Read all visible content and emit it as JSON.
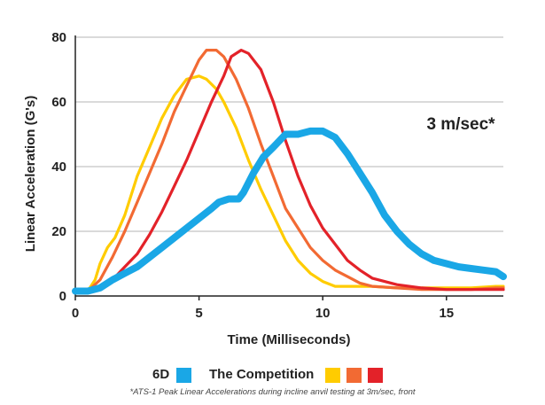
{
  "chart_data": {
    "type": "line",
    "xlabel": "Time (Milliseconds)",
    "ylabel": "Linear Acceleration (G's)",
    "xlim": [
      0,
      17.3
    ],
    "ylim": [
      0,
      80
    ],
    "xticks": [
      0,
      5,
      10,
      15
    ],
    "yticks": [
      0,
      20,
      40,
      60,
      80
    ],
    "grid": "horizontal",
    "annotation": "3 m/sec*",
    "series": [
      {
        "color": "#1aa7e6",
        "x": [
          0,
          0.5,
          1,
          1.5,
          2,
          2.5,
          3,
          3.5,
          4,
          4.5,
          5,
          5.5,
          5.8,
          6.2,
          6.6,
          6.8,
          7.2,
          7.6,
          8,
          8.5,
          9,
          9.5,
          10,
          10.5,
          11,
          11.5,
          12,
          12.5,
          13,
          13.5,
          14,
          14.5,
          15,
          15.5,
          16,
          16.5,
          17,
          17.3
        ],
        "values": [
          1.5,
          1.5,
          2.5,
          5,
          7,
          9,
          12,
          15,
          18,
          21,
          24,
          27,
          29,
          30,
          30,
          32,
          38,
          43,
          46,
          50,
          50,
          51,
          51,
          49,
          44,
          38,
          32,
          25,
          20,
          16,
          13,
          11,
          10,
          9,
          8.5,
          8,
          7.5,
          6
        ]
      },
      {
        "color": "#ffcc00",
        "x": [
          0,
          0.5,
          0.8,
          1,
          1.3,
          1.6,
          2,
          2.5,
          3,
          3.5,
          4,
          4.5,
          5,
          5.3,
          5.7,
          6,
          6.5,
          7,
          7.5,
          8,
          8.5,
          9,
          9.5,
          10,
          10.5,
          11,
          11.5,
          12,
          13,
          14,
          15,
          16,
          17,
          17.3
        ],
        "values": [
          1,
          1.5,
          5,
          10,
          15,
          18,
          25,
          37,
          46,
          55,
          62,
          67,
          68,
          67,
          64,
          60,
          52,
          42,
          33,
          25,
          17,
          11,
          7,
          4.5,
          3,
          3,
          3,
          3,
          2.5,
          2.5,
          2.5,
          2.5,
          3,
          3
        ]
      },
      {
        "color": "#f26a33",
        "x": [
          0,
          0.5,
          1,
          1.5,
          2,
          2.5,
          3,
          3.5,
          4,
          4.5,
          5,
          5.3,
          5.7,
          6,
          6.5,
          7,
          7.5,
          8,
          8.5,
          9,
          9.5,
          10,
          10.5,
          11,
          11.5,
          12,
          13,
          14,
          15,
          16,
          17,
          17.3
        ],
        "values": [
          1,
          1.5,
          5,
          12,
          20,
          29,
          38,
          47,
          57,
          65,
          73,
          76,
          76,
          74,
          67,
          58,
          47,
          37,
          27,
          21,
          15,
          11,
          8,
          6,
          4,
          3,
          2.5,
          2,
          2,
          2,
          2.5,
          2.5
        ]
      },
      {
        "color": "#e32229",
        "x": [
          0,
          0.5,
          1,
          1.5,
          2,
          2.5,
          3,
          3.5,
          4,
          4.5,
          5,
          5.5,
          6,
          6.3,
          6.7,
          7,
          7.5,
          8,
          8.5,
          9,
          9.5,
          10,
          10.5,
          11,
          11.5,
          12,
          13,
          14,
          15,
          16,
          17,
          17.3
        ],
        "values": [
          1,
          1.5,
          2.5,
          5,
          9,
          13,
          19,
          26,
          34,
          42,
          51,
          60,
          68,
          74,
          76,
          75,
          70,
          60,
          48,
          37,
          28,
          21,
          16,
          11,
          8,
          5.5,
          3.5,
          2.5,
          2,
          2,
          2,
          2
        ]
      }
    ]
  },
  "legend": {
    "label_6d": "6D",
    "color_6d": "#1aa7e6",
    "label_competition": "The Competition",
    "competition_colors": [
      "#ffcc00",
      "#f26a33",
      "#e32229"
    ]
  },
  "footnote": "*ATS-1 Peak Linear Accelerations during incline anvil testing at 3m/sec, front"
}
